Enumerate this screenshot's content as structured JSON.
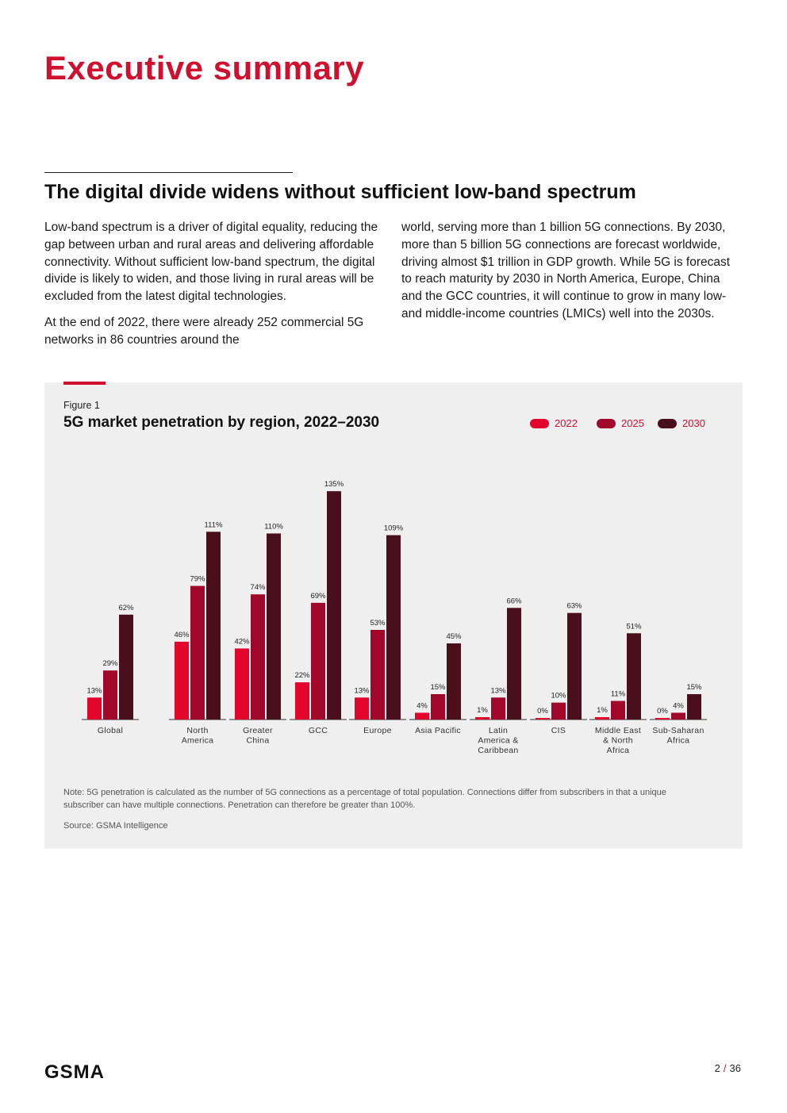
{
  "page": {
    "title": "Executive summary",
    "section_heading": "The digital divide widens without sufficient low-band spectrum",
    "left_column": [
      "Low-band spectrum is a driver of digital equality, reducing the gap between urban and rural areas and delivering affordable connectivity. Without sufficient low-band spectrum, the digital divide is likely to widen, and those living in rural areas will be excluded from the latest digital technologies.",
      "At the end of 2022, there were already 252 commercial 5G networks in 86 countries around the"
    ],
    "right_column": [
      "world, serving more than 1 billion 5G connections. By 2030, more than 5 billion 5G connections are forecast worldwide, driving almost $1 trillion in GDP growth. While 5G is forecast to reach maturity by 2030 in North America, Europe, China and the GCC countries, it will continue to grow in many low- and middle-income countries (LMICs) well into the 2030s."
    ]
  },
  "figure": {
    "label": "Figure 1",
    "title": "5G market penetration by region, 2022–2030",
    "note": "Note: 5G penetration is calculated as the number of 5G connections as a percentage of total population. Connections differ from subscribers in that a unique subscriber can have multiple connections. Penetration can therefore be greater than 100%.",
    "source": "Source: GSMA Intelligence"
  },
  "chart_data": {
    "type": "bar",
    "title": "5G market penetration by region, 2022–2030",
    "categories": [
      [
        "Global"
      ],
      [
        "North",
        "America"
      ],
      [
        "Greater",
        "China"
      ],
      [
        "GCC"
      ],
      [
        "Europe"
      ],
      [
        "Asia Pacific"
      ],
      [
        "Latin",
        "America &",
        "Caribbean"
      ],
      [
        "CIS"
      ],
      [
        "Middle East",
        "& North",
        "Africa"
      ],
      [
        "Sub-Saharan",
        "Africa"
      ]
    ],
    "series": [
      {
        "name": "2022",
        "color": "#e2062c",
        "values": [
          13,
          46,
          42,
          22,
          13,
          4,
          1,
          0,
          1,
          0
        ]
      },
      {
        "name": "2025",
        "color": "#a0072a",
        "values": [
          29,
          79,
          74,
          69,
          53,
          15,
          13,
          10,
          11,
          4
        ]
      },
      {
        "name": "2030",
        "color": "#4a0f1c",
        "values": [
          62,
          111,
          110,
          135,
          109,
          45,
          66,
          63,
          51,
          15
        ]
      }
    ],
    "value_suffix": "%",
    "ylim": [
      0,
      140
    ],
    "xlabel": "",
    "ylabel": "",
    "legend": "top-right"
  },
  "footer": {
    "logo": "GSMA",
    "page_current": "2",
    "page_separator": "/",
    "page_total": "36"
  }
}
